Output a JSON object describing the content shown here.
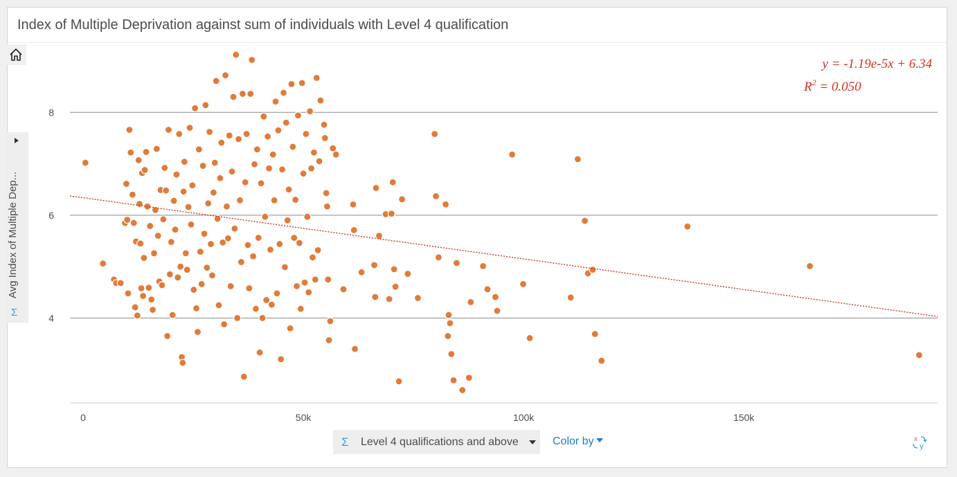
{
  "title": "Index of Multiple Deprivation against sum of individuals with Level 4 qualification",
  "y_selector": {
    "label": "Avg Index of Multiple Dep..."
  },
  "x_selector": {
    "label": "Level 4 qualifications and above"
  },
  "color_by": {
    "label": "Color by"
  },
  "equation": {
    "line1": "y = -1.19e-5x + 6.34",
    "r2_prefix": "R",
    "r2_exp": "2",
    "r2_suffix": " = 0.050"
  },
  "colors": {
    "point": "#e07b39",
    "trend": "#d32f1f",
    "accent": "#3a9fd6",
    "link": "#1f7cc7"
  },
  "icons": {
    "home": "home-icon",
    "sigma": "sigma-icon",
    "swap_axes": "swap-axes-icon"
  },
  "chart_data": {
    "type": "scatter",
    "title": "Index of Multiple Deprivation against sum of individuals with Level 4 qualification",
    "xlabel": "Level 4 qualifications and above",
    "ylabel": "Avg Index of Multiple Dep...",
    "xlim": [
      -3000,
      194000
    ],
    "ylim": [
      2.35,
      9.35
    ],
    "x_ticks": [
      0,
      50000,
      100000,
      150000
    ],
    "x_tick_labels": [
      "0",
      "50k",
      "100k",
      "150k"
    ],
    "y_ticks": [
      4,
      6,
      8
    ],
    "y_tick_labels": [
      "4",
      "6",
      "8"
    ],
    "grid": "horizontal",
    "trendline": {
      "slope": -1.19e-05,
      "intercept": 6.34,
      "r2": 0.05
    },
    "points": [
      [
        500,
        7.02
      ],
      [
        4500,
        5.06
      ],
      [
        7000,
        4.75
      ],
      [
        7500,
        4.68
      ],
      [
        8500,
        4.68
      ],
      [
        9500,
        5.85
      ],
      [
        9800,
        6.61
      ],
      [
        10000,
        5.91
      ],
      [
        10200,
        4.48
      ],
      [
        10500,
        7.66
      ],
      [
        10800,
        7.22
      ],
      [
        11200,
        6.4
      ],
      [
        11500,
        5.85
      ],
      [
        11800,
        4.21
      ],
      [
        12000,
        5.49
      ],
      [
        12300,
        4.05
      ],
      [
        12600,
        7.07
      ],
      [
        12800,
        6.22
      ],
      [
        13000,
        5.45
      ],
      [
        13200,
        4.58
      ],
      [
        13400,
        6.82
      ],
      [
        13600,
        4.43
      ],
      [
        13800,
        5.17
      ],
      [
        14000,
        6.88
      ],
      [
        14300,
        7.23
      ],
      [
        14600,
        6.17
      ],
      [
        14900,
        4.59
      ],
      [
        15200,
        5.79
      ],
      [
        15500,
        4.36
      ],
      [
        15800,
        4.16
      ],
      [
        16100,
        5.26
      ],
      [
        16400,
        6.1
      ],
      [
        16700,
        7.29
      ],
      [
        17000,
        5.6
      ],
      [
        17300,
        4.71
      ],
      [
        17600,
        6.49
      ],
      [
        17900,
        4.64
      ],
      [
        18200,
        5.92
      ],
      [
        18500,
        6.92
      ],
      [
        18800,
        6.48
      ],
      [
        19100,
        3.65
      ],
      [
        19400,
        7.66
      ],
      [
        19700,
        4.85
      ],
      [
        20000,
        5.48
      ],
      [
        20300,
        4.06
      ],
      [
        20600,
        6.28
      ],
      [
        20900,
        5.72
      ],
      [
        21200,
        6.79
      ],
      [
        21500,
        4.79
      ],
      [
        21800,
        7.58
      ],
      [
        22100,
        5.0
      ],
      [
        22400,
        3.24
      ],
      [
        22600,
        3.13
      ],
      [
        22800,
        6.46
      ],
      [
        23000,
        7.04
      ],
      [
        23300,
        5.26
      ],
      [
        23600,
        4.94
      ],
      [
        23900,
        6.16
      ],
      [
        24200,
        7.7
      ],
      [
        24500,
        5.82
      ],
      [
        24800,
        6.58
      ],
      [
        25100,
        4.55
      ],
      [
        25400,
        8.08
      ],
      [
        25700,
        4.19
      ],
      [
        26000,
        3.73
      ],
      [
        26300,
        7.28
      ],
      [
        26600,
        5.29
      ],
      [
        26900,
        4.66
      ],
      [
        27200,
        6.96
      ],
      [
        27500,
        5.64
      ],
      [
        27800,
        8.14
      ],
      [
        28100,
        4.98
      ],
      [
        28400,
        6.23
      ],
      [
        28700,
        7.62
      ],
      [
        29000,
        5.44
      ],
      [
        29300,
        4.83
      ],
      [
        29600,
        6.44
      ],
      [
        29900,
        7.02
      ],
      [
        30200,
        8.61
      ],
      [
        30500,
        5.93
      ],
      [
        30800,
        4.25
      ],
      [
        31100,
        6.72
      ],
      [
        31400,
        7.41
      ],
      [
        31700,
        5.47
      ],
      [
        32000,
        3.88
      ],
      [
        32300,
        8.72
      ],
      [
        32600,
        6.17
      ],
      [
        32900,
        5.55
      ],
      [
        33200,
        7.55
      ],
      [
        33500,
        4.62
      ],
      [
        33800,
        6.85
      ],
      [
        34100,
        8.3
      ],
      [
        34400,
        5.74
      ],
      [
        34700,
        9.12
      ],
      [
        35000,
        4.0
      ],
      [
        35300,
        7.48
      ],
      [
        35600,
        6.29
      ],
      [
        35900,
        5.09
      ],
      [
        36200,
        8.36
      ],
      [
        36500,
        2.86
      ],
      [
        36800,
        6.64
      ],
      [
        37100,
        7.58
      ],
      [
        37400,
        5.42
      ],
      [
        37700,
        4.58
      ],
      [
        38000,
        8.36
      ],
      [
        38300,
        9.02
      ],
      [
        38600,
        5.2
      ],
      [
        38900,
        6.99
      ],
      [
        39200,
        4.18
      ],
      [
        39500,
        7.28
      ],
      [
        39800,
        5.56
      ],
      [
        40100,
        3.33
      ],
      [
        40400,
        6.62
      ],
      [
        40700,
        4.0
      ],
      [
        41000,
        7.92
      ],
      [
        41300,
        5.97
      ],
      [
        41600,
        4.35
      ],
      [
        41900,
        7.53
      ],
      [
        42200,
        6.91
      ],
      [
        42500,
        5.33
      ],
      [
        42800,
        4.26
      ],
      [
        43100,
        7.18
      ],
      [
        43400,
        6.29
      ],
      [
        43700,
        8.21
      ],
      [
        44000,
        4.48
      ],
      [
        44300,
        7.65
      ],
      [
        44600,
        5.44
      ],
      [
        44900,
        3.2
      ],
      [
        45200,
        6.89
      ],
      [
        45500,
        8.38
      ],
      [
        45800,
        4.99
      ],
      [
        46100,
        7.8
      ],
      [
        46400,
        5.9
      ],
      [
        46700,
        6.5
      ],
      [
        47000,
        3.8
      ],
      [
        47300,
        8.55
      ],
      [
        47600,
        7.33
      ],
      [
        47900,
        5.56
      ],
      [
        48200,
        6.3
      ],
      [
        48500,
        4.62
      ],
      [
        48800,
        7.94
      ],
      [
        49100,
        5.46
      ],
      [
        49400,
        4.18
      ],
      [
        49700,
        8.57
      ],
      [
        50000,
        6.81
      ],
      [
        50300,
        4.69
      ],
      [
        50600,
        7.58
      ],
      [
        50900,
        5.97
      ],
      [
        51200,
        4.5
      ],
      [
        51500,
        8.02
      ],
      [
        51800,
        6.91
      ],
      [
        52100,
        5.18
      ],
      [
        52400,
        7.22
      ],
      [
        52700,
        4.75
      ],
      [
        53000,
        8.67
      ],
      [
        53300,
        5.32
      ],
      [
        53600,
        7.05
      ],
      [
        53900,
        8.23
      ],
      [
        54700,
        7.76
      ],
      [
        54900,
        7.5
      ],
      [
        55200,
        6.43
      ],
      [
        55400,
        6.17
      ],
      [
        55600,
        4.75
      ],
      [
        55800,
        3.57
      ],
      [
        56100,
        3.94
      ],
      [
        56700,
        7.3
      ],
      [
        57400,
        7.18
      ],
      [
        59100,
        4.56
      ],
      [
        61300,
        6.21
      ],
      [
        61500,
        5.71
      ],
      [
        61700,
        3.4
      ],
      [
        63200,
        4.89
      ],
      [
        66100,
        5.03
      ],
      [
        66300,
        4.41
      ],
      [
        66500,
        6.53
      ],
      [
        67200,
        5.6
      ],
      [
        68700,
        6.02
      ],
      [
        69500,
        4.37
      ],
      [
        70000,
        6.03
      ],
      [
        70300,
        6.64
      ],
      [
        70600,
        4.95
      ],
      [
        70900,
        4.61
      ],
      [
        71700,
        2.77
      ],
      [
        72400,
        6.31
      ],
      [
        73700,
        4.86
      ],
      [
        76000,
        4.39
      ],
      [
        79800,
        7.58
      ],
      [
        80100,
        6.37
      ],
      [
        80700,
        5.18
      ],
      [
        82300,
        6.21
      ],
      [
        82800,
        3.65
      ],
      [
        83000,
        4.06
      ],
      [
        83300,
        3.9
      ],
      [
        83600,
        3.3
      ],
      [
        84100,
        2.79
      ],
      [
        84800,
        5.07
      ],
      [
        86100,
        2.6
      ],
      [
        87600,
        2.84
      ],
      [
        88000,
        4.31
      ],
      [
        90800,
        5.01
      ],
      [
        91800,
        4.56
      ],
      [
        93600,
        4.41
      ],
      [
        94000,
        4.14
      ],
      [
        97400,
        7.18
      ],
      [
        99900,
        4.66
      ],
      [
        101400,
        3.61
      ],
      [
        110700,
        4.4
      ],
      [
        112300,
        7.09
      ],
      [
        113900,
        5.89
      ],
      [
        114600,
        4.87
      ],
      [
        115700,
        4.94
      ],
      [
        116200,
        3.69
      ],
      [
        117700,
        3.17
      ],
      [
        137200,
        5.78
      ],
      [
        165000,
        5.01
      ],
      [
        189800,
        3.28
      ]
    ]
  }
}
